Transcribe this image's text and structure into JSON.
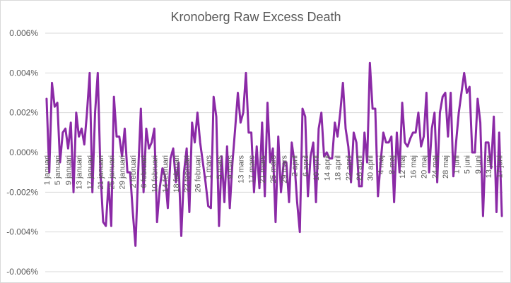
{
  "chart_data": {
    "type": "line",
    "title": "Kronoberg Raw Excess Death",
    "xlabel": "",
    "ylabel": "",
    "ylim": [
      -0.006,
      0.006
    ],
    "yticks": [
      -0.006,
      -0.004,
      -0.002,
      0.0,
      0.002,
      0.004,
      0.006
    ],
    "ytick_labels": [
      "-0.006%",
      "-0.004%",
      "-0.002%",
      "0.000%",
      "0.002%",
      "0.004%",
      "0.006%"
    ],
    "grid": true,
    "legend": "none",
    "color": "#8b2aa6",
    "x_start_label": "1 januari",
    "x_label_every": 4,
    "xtick_labels": [
      "1 januari",
      "5 januari",
      "9 januari",
      "13 januari",
      "17 januari",
      "21 januari",
      "25 januari",
      "29 januari",
      "2 februari",
      "6 februari",
      "10 februari",
      "14 februari",
      "18 februari",
      "22 februari",
      "26 februari",
      "1 mars",
      "5 mars",
      "9 mars",
      "13 mars",
      "17 mars",
      "21 mars",
      "25 mars",
      "29 mars",
      "2 april",
      "6 april",
      "10 april",
      "14 april",
      "18 april",
      "22 april",
      "26 april",
      "30 april",
      "4 maj",
      "8 maj",
      "12 maj",
      "16 maj",
      "20 maj",
      "24 maj",
      "28 maj",
      "1 juni",
      "5 juni",
      "9 juni",
      "13 juni",
      "17 juni"
    ],
    "series": [
      {
        "name": "Kronoberg",
        "values": [
          0.0027,
          -0.001,
          0.0035,
          0.0023,
          0.0025,
          -0.0005,
          0.001,
          0.0012,
          0.0002,
          0.0015,
          -0.002,
          0.002,
          0.0008,
          0.0012,
          0.0004,
          0.002,
          0.004,
          -0.002,
          0.002,
          0.004,
          -0.001,
          -0.0035,
          -0.0037,
          -0.0015,
          -0.0037,
          0.0028,
          0.0008,
          0.0008,
          -0.0002,
          0.0012,
          -0.001,
          -0.001,
          -0.003,
          -0.0047,
          -0.001,
          0.0022,
          -0.002,
          0.0012,
          0.0002,
          0.0005,
          0.0012,
          -0.0035,
          -0.0018,
          -0.0008,
          -0.0012,
          -0.0028,
          -0.0003,
          0.0002,
          -0.0015,
          -0.0005,
          -0.0042,
          -0.001,
          0.0002,
          -0.003,
          0.0015,
          0.0005,
          0.002,
          0.0005,
          -0.0005,
          -0.0015,
          -0.0027,
          -0.0028,
          0.0028,
          0.0018,
          -0.0037,
          -0.0002,
          -0.0025,
          0.0003,
          -0.0028,
          -0.0005,
          0.0012,
          0.003,
          0.0015,
          0.002,
          0.004,
          0.001,
          0.001,
          -0.002,
          0.0003,
          -0.0018,
          0.0015,
          -0.0022,
          0.0025,
          -0.0005,
          0.0002,
          -0.0035,
          0.0008,
          -0.002,
          -0.0005,
          -0.0005,
          -0.0025,
          0.0005,
          -0.0005,
          -0.0025,
          -0.004,
          0.0022,
          0.0018,
          -0.0022,
          -0.0002,
          0.0005,
          -0.0025,
          0.0012,
          0.002,
          -0.0002,
          0.0,
          -0.0003,
          -0.0003,
          0.0015,
          0.0008,
          0.002,
          0.0035,
          0.0012,
          0.0003,
          -0.0015,
          0.001,
          0.0005,
          -0.0017,
          -0.0017,
          0.001,
          -0.0005,
          0.0045,
          0.0022,
          0.0022,
          -0.0022,
          -0.0005,
          0.001,
          0.0005,
          0.0005,
          0.0008,
          -0.0025,
          0.001,
          -0.001,
          0.0025,
          0.0005,
          0.0003,
          0.0007,
          0.001,
          0.001,
          0.002,
          0.0003,
          0.0008,
          0.003,
          -0.001,
          0.0012,
          0.002,
          -0.0015,
          0.002,
          0.0028,
          0.003,
          0.0008,
          0.003,
          -0.0012,
          0.0005,
          0.002,
          0.003,
          0.004,
          0.003,
          0.0033,
          0.0,
          0.0,
          0.0027,
          0.0015,
          -0.0032,
          0.0005,
          0.0005,
          -0.0008,
          0.0018,
          -0.003,
          0.001,
          -0.0032
        ]
      }
    ]
  }
}
